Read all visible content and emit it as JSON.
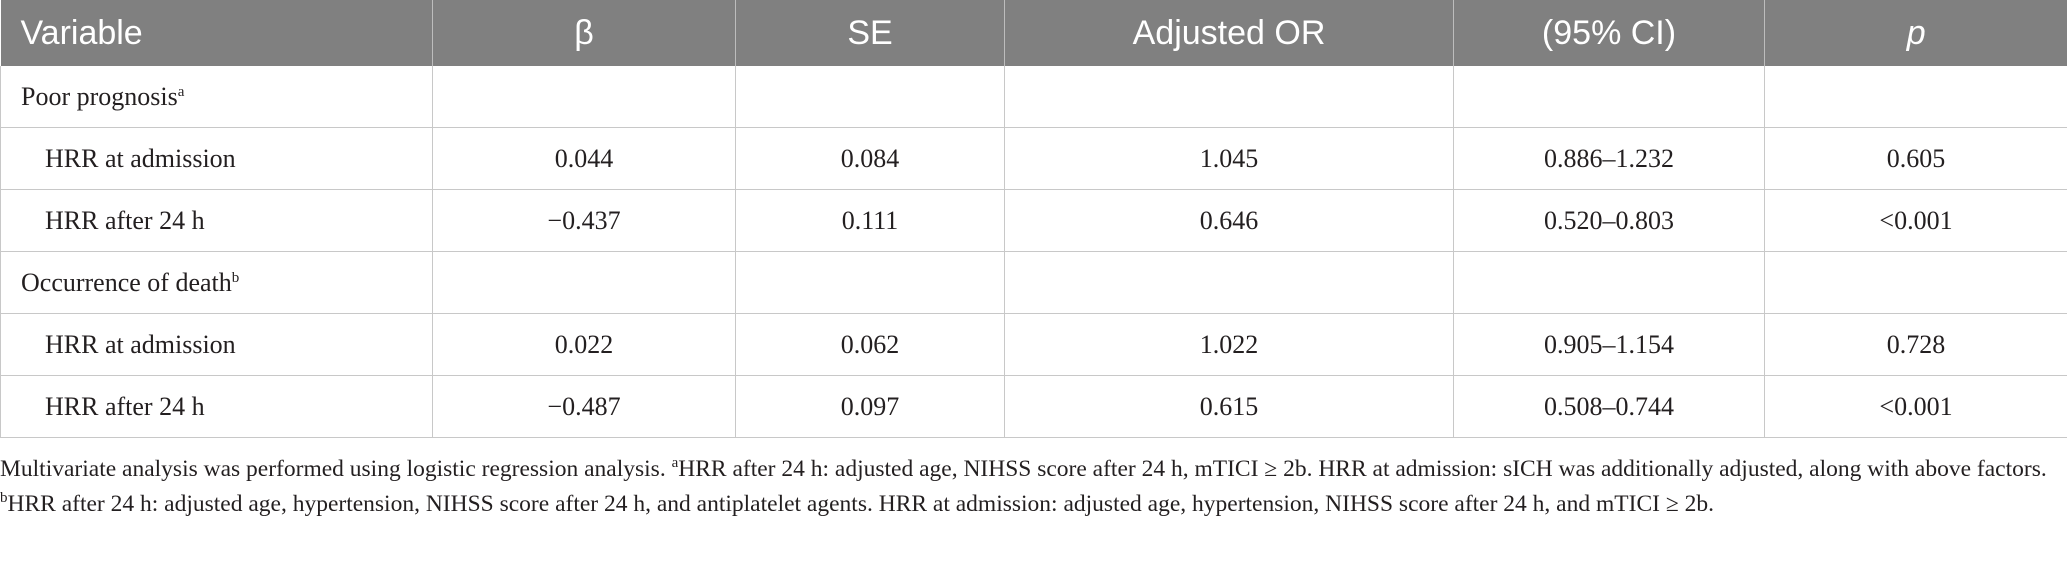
{
  "table": {
    "headers": [
      "Variable",
      "β",
      "SE",
      "Adjusted OR",
      "(95% CI)",
      "p"
    ],
    "groups": [
      {
        "label": "Poor prognosis",
        "marker": "a",
        "rows": [
          {
            "variable": "HRR at admission",
            "beta": "0.044",
            "se": "0.084",
            "or": "1.045",
            "ci": "0.886–1.232",
            "p": "0.605"
          },
          {
            "variable": "HRR after 24 h",
            "beta": "−0.437",
            "se": "0.111",
            "or": "0.646",
            "ci": "0.520–0.803",
            "p": "<0.001"
          }
        ]
      },
      {
        "label": "Occurrence of death",
        "marker": "b",
        "rows": [
          {
            "variable": "HRR at admission",
            "beta": "0.022",
            "se": "0.062",
            "or": "1.022",
            "ci": "0.905–1.154",
            "p": "0.728"
          },
          {
            "variable": "HRR after 24 h",
            "beta": "−0.487",
            "se": "0.097",
            "or": "0.615",
            "ci": "0.508–0.744",
            "p": "<0.001"
          }
        ]
      }
    ]
  },
  "footnote": {
    "intro": "Multivariate analysis was performed using logistic regression analysis. ",
    "marker_a": "a",
    "note_a": "HRR after 24 h: adjusted age, NIHSS score after 24 h, mTICI ≥ 2b. HRR at admission: sICH was additionally adjusted, along with above factors. ",
    "marker_b": "b",
    "note_b": "HRR after 24 h: adjusted age, hypertension, NIHSS score after 24 h, and antiplatelet agents. HRR at admission: adjusted age, hypertension, NIHSS score after 24 h, and mTICI ≥ 2b."
  }
}
